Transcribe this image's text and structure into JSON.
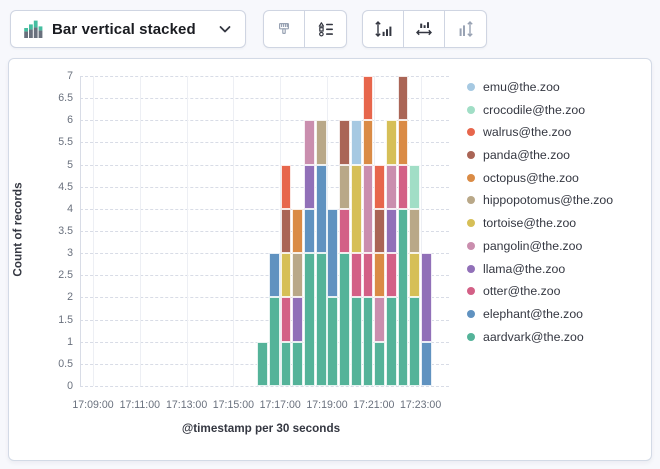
{
  "toolbar": {
    "chart_type_button": {
      "label": "Bar vertical stacked",
      "icon": "stacked-bar-chart-icon",
      "dropdown_icon": "chevron-down-icon"
    },
    "icon_buttons": [
      {
        "name": "brush",
        "icon": "brush-icon",
        "enabled": false
      },
      {
        "name": "visual-options",
        "icon": "list-options-icon",
        "enabled": true
      },
      {
        "name": "expand-y-axis",
        "icon": "vertical-expand-bars-icon",
        "enabled": true
      },
      {
        "name": "expand-x-axis",
        "icon": "horizontal-expand-bars-icon",
        "enabled": true
      },
      {
        "name": "collapse-y-axis",
        "icon": "vertical-collapse-bars-icon",
        "enabled": false
      }
    ]
  },
  "colors": {
    "page_background": "#f7f8fc",
    "panel_background": "#ffffff",
    "panel_border": "#d3dae6",
    "grid_dashed": "#d8dce6",
    "grid_vertical": "#edeff4",
    "axis_tick_text": "#69707d",
    "axis_title_text": "#343741",
    "toolbar_icon_enabled": "#343741",
    "toolbar_icon_disabled": "#98a2b3",
    "icon_green": "#45bea0",
    "icon_gray": "#69707d"
  },
  "chart_data": {
    "type": "bar",
    "stacked": true,
    "title": "",
    "ylabel": "Count of records",
    "xlabel": "@timestamp per 30 seconds",
    "ylim": [
      0,
      7
    ],
    "y_tick_step": 0.5,
    "y_tick_labels": [
      "0",
      "0.5",
      "1",
      "1.5",
      "2",
      "2.5",
      "3",
      "3.5",
      "4",
      "4.5",
      "5",
      "5.5",
      "6",
      "6.5",
      "7"
    ],
    "x_tick_labels": [
      "17:09:00",
      "17:11:00",
      "17:13:00",
      "17:15:00",
      "17:17:00",
      "17:19:00",
      "17:21:00",
      "17:23:00"
    ],
    "grid": true,
    "legend_position": "right",
    "categories": [
      "17:16:00",
      "17:16:30",
      "17:17:00",
      "17:17:30",
      "17:18:00",
      "17:18:30",
      "17:19:00",
      "17:19:30",
      "17:20:00",
      "17:20:30",
      "17:21:00",
      "17:21:30",
      "17:22:00",
      "17:22:30",
      "17:23:00"
    ],
    "series": [
      {
        "name": "aardvark@the.zoo",
        "color": "#54B399",
        "values": [
          1,
          2,
          1,
          1,
          3,
          3,
          2,
          3,
          2,
          2,
          1,
          2,
          4,
          2,
          0
        ]
      },
      {
        "name": "elephant@the.zoo",
        "color": "#6092C0",
        "values": [
          0,
          1,
          0,
          0,
          1,
          2,
          2,
          0,
          0,
          0,
          0,
          0,
          0,
          0,
          1
        ]
      },
      {
        "name": "otter@the.zoo",
        "color": "#D36086",
        "values": [
          0,
          0,
          1,
          0,
          0,
          0,
          0,
          1,
          1,
          1,
          0,
          1,
          1,
          0,
          0
        ]
      },
      {
        "name": "llama@the.zoo",
        "color": "#9170B8",
        "values": [
          0,
          0,
          0,
          1,
          1,
          0,
          0,
          0,
          0,
          0,
          0,
          1,
          0,
          0,
          2
        ]
      },
      {
        "name": "pangolin@the.zoo",
        "color": "#CA8EAE",
        "values": [
          0,
          0,
          0,
          0,
          1,
          0,
          0,
          0,
          0,
          2,
          1,
          1,
          0,
          0,
          0
        ]
      },
      {
        "name": "tortoise@the.zoo",
        "color": "#D6BF57",
        "values": [
          0,
          0,
          1,
          0,
          0,
          0,
          0,
          0,
          2,
          0,
          0,
          1,
          0,
          1,
          0
        ]
      },
      {
        "name": "hippopotomus@the.zoo",
        "color": "#B9A888",
        "values": [
          0,
          0,
          0,
          1,
          0,
          1,
          0,
          1,
          0,
          0,
          0,
          0,
          0,
          1,
          0
        ]
      },
      {
        "name": "octopus@the.zoo",
        "color": "#DA8B45",
        "values": [
          0,
          0,
          0,
          1,
          0,
          0,
          0,
          0,
          0,
          1,
          1,
          0,
          1,
          0,
          0
        ]
      },
      {
        "name": "panda@the.zoo",
        "color": "#AA6556",
        "values": [
          0,
          0,
          1,
          0,
          0,
          0,
          0,
          1,
          0,
          0,
          1,
          0,
          1,
          0,
          0
        ]
      },
      {
        "name": "walrus@the.zoo",
        "color": "#E7664C",
        "values": [
          0,
          0,
          1,
          0,
          0,
          0,
          0,
          0,
          0,
          1,
          1,
          0,
          0,
          0,
          0
        ]
      },
      {
        "name": "crocodile@the.zoo",
        "color": "#A1DEC6",
        "values": [
          0,
          0,
          0,
          0,
          0,
          0,
          0,
          0,
          0,
          0,
          0,
          0,
          0,
          1,
          0
        ]
      },
      {
        "name": "emu@the.zoo",
        "color": "#A6C9E2",
        "values": [
          0,
          0,
          0,
          0,
          0,
          0,
          0,
          0,
          1,
          0,
          0,
          0,
          0,
          0,
          0
        ]
      }
    ]
  },
  "legend": {
    "items": [
      {
        "label": "emu@the.zoo",
        "color": "#A6C9E2"
      },
      {
        "label": "crocodile@the.zoo",
        "color": "#A1DEC6"
      },
      {
        "label": "walrus@the.zoo",
        "color": "#E7664C"
      },
      {
        "label": "panda@the.zoo",
        "color": "#AA6556"
      },
      {
        "label": "octopus@the.zoo",
        "color": "#DA8B45"
      },
      {
        "label": "hippopotomus@the.zoo",
        "color": "#B9A888"
      },
      {
        "label": "tortoise@the.zoo",
        "color": "#D6BF57"
      },
      {
        "label": "pangolin@the.zoo",
        "color": "#CA8EAE"
      },
      {
        "label": "llama@the.zoo",
        "color": "#9170B8"
      },
      {
        "label": "otter@the.zoo",
        "color": "#D36086"
      },
      {
        "label": "elephant@the.zoo",
        "color": "#6092C0"
      },
      {
        "label": "aardvark@the.zoo",
        "color": "#54B399"
      }
    ]
  }
}
